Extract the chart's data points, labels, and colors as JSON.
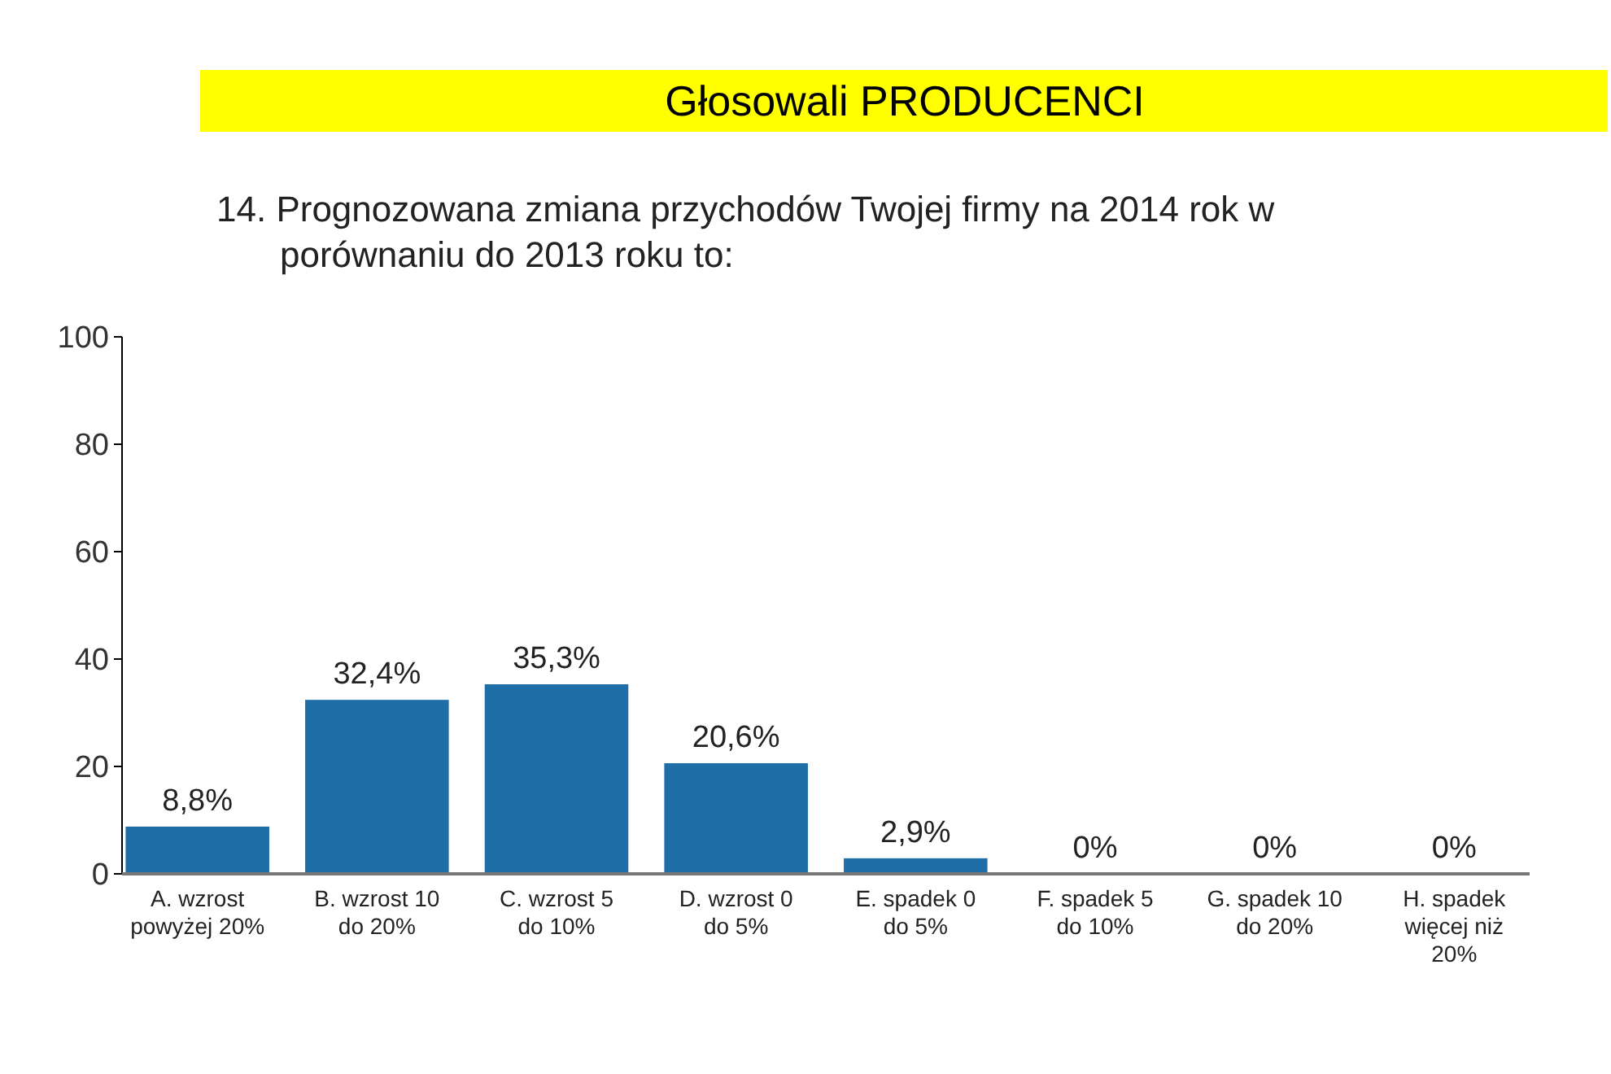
{
  "chart_data": {
    "type": "bar",
    "subtitle": "Głosowali PRODUCENCI",
    "title": "14. Prognozowana zmiana przychodów Twojej firmy na 2014 rok w porównaniu do 2013 roku to:",
    "categories": [
      "A. wzrost powyżej 20%",
      "B. wzrost 10 do 20%",
      "C. wzrost 5 do 10%",
      "D. wzrost 0 do 5%",
      "E. spadek 0 do 5%",
      "F. spadek 5 do 10%",
      "G. spadek 10 do 20%",
      "H. spadek więcej niż 20%"
    ],
    "values": [
      8.8,
      32.4,
      35.3,
      20.6,
      2.9,
      0,
      0,
      0
    ],
    "value_labels": [
      "8,8%",
      "32,4%",
      "35,3%",
      "20,6%",
      "2,9%",
      "0%",
      "0%",
      "0%"
    ],
    "color": "#1f6ea8",
    "ylim": [
      0,
      100
    ],
    "yticks": [
      0,
      20,
      40,
      60,
      80,
      100
    ],
    "grid": false
  }
}
